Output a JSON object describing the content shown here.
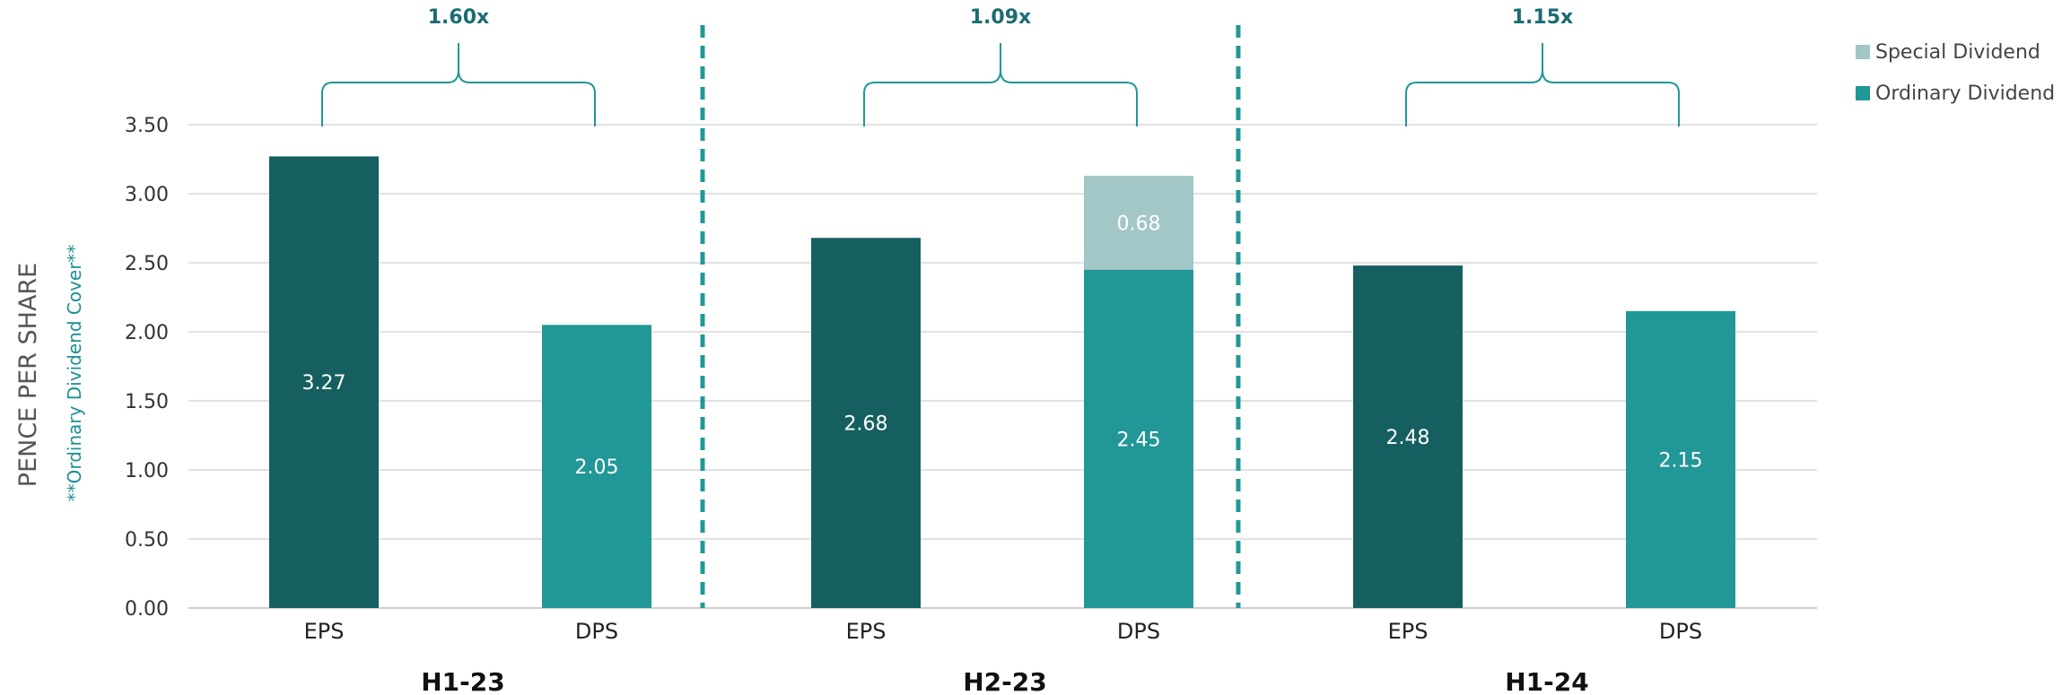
{
  "chart_data": {
    "type": "bar",
    "ylim": [
      0,
      3.5
    ],
    "yticks": [
      "0.00",
      "0.50",
      "1.00",
      "1.50",
      "2.00",
      "2.50",
      "3.00",
      "3.50"
    ],
    "ylabel": "PENCE PER SHARE",
    "ylabel_secondary": "**Ordinary Dividend Cover**",
    "legend": {
      "position": "top-right",
      "items": [
        {
          "name": "Special Dividend",
          "color": "#a3c6c6"
        },
        {
          "name": "Ordinary Dividend",
          "color": "#229797"
        }
      ]
    },
    "colors": {
      "eps": "#165f60",
      "ordinary": "#229797",
      "special": "#a3c6c6",
      "ratio": "#1b6b73",
      "divider": "#229797",
      "grid": "#d9d9d9"
    },
    "groups": [
      {
        "name": "H1-23",
        "cover": "1.60x",
        "bars": [
          {
            "category": "EPS",
            "series": "eps",
            "value": 3.27,
            "label": "3.27"
          },
          {
            "category": "DPS",
            "series": "ordinary",
            "value": 2.05,
            "label": "2.05"
          }
        ]
      },
      {
        "name": "H2-23",
        "cover": "1.09x",
        "bars": [
          {
            "category": "EPS",
            "series": "eps",
            "value": 2.68,
            "label": "2.68"
          },
          {
            "category": "DPS",
            "series": "ordinary",
            "value": 2.45,
            "label": "2.45",
            "special": 0.68,
            "special_label": "0.68"
          }
        ]
      },
      {
        "name": "H1-24",
        "cover": "1.15x",
        "bars": [
          {
            "category": "EPS",
            "series": "eps",
            "value": 2.48,
            "label": "2.48"
          },
          {
            "category": "DPS",
            "series": "ordinary",
            "value": 2.15,
            "label": "2.15"
          }
        ]
      }
    ]
  }
}
